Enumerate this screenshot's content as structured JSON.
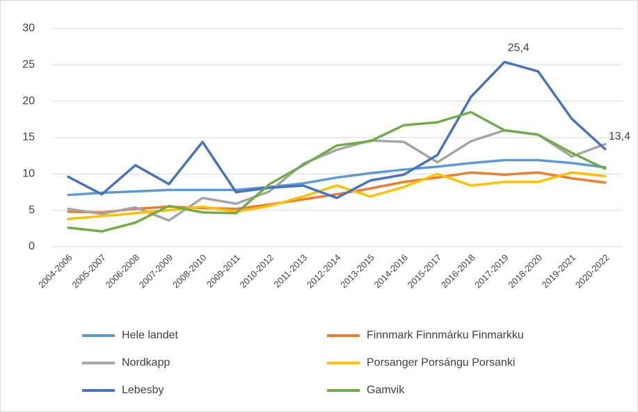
{
  "chart_data": {
    "type": "line",
    "categories": [
      "2004-2006",
      "2005-2007",
      "2006-2008",
      "2007-2009",
      "2008-2010",
      "2009-2011",
      "2010-2012",
      "2011-2013",
      "2012-2014",
      "2013-2015",
      "2014-2016",
      "2015-2017",
      "2016-2018",
      "2017-2019",
      "2018-2020",
      "2019-2021",
      "2020-2022"
    ],
    "series": [
      {
        "name": "Hele landet",
        "color": "#5b9bd5",
        "values": [
          7.1,
          7.4,
          7.6,
          7.8,
          7.8,
          7.8,
          8.2,
          8.7,
          9.5,
          10.1,
          10.6,
          11.0,
          11.5,
          11.9,
          11.9,
          11.5,
          10.9
        ]
      },
      {
        "name": "Finnmark Finnmárku Finmarkku",
        "color": "#ed7d31",
        "values": [
          4.8,
          4.7,
          5.2,
          5.5,
          5.3,
          5.2,
          5.8,
          6.5,
          7.2,
          8.0,
          8.9,
          9.5,
          10.2,
          9.9,
          10.2,
          9.4,
          8.8
        ]
      },
      {
        "name": "Nordkapp",
        "color": "#a5a5a5",
        "values": [
          5.2,
          4.5,
          5.4,
          3.6,
          6.7,
          5.9,
          7.6,
          11.4,
          13.3,
          14.6,
          14.4,
          11.6,
          14.5,
          16.0,
          15.4,
          12.4,
          14.1
        ]
      },
      {
        "name": "Porsanger Porsángu Porsanki",
        "color": "#ffc000",
        "values": [
          3.8,
          4.2,
          4.6,
          5.0,
          5.5,
          4.8,
          5.6,
          6.9,
          8.4,
          6.9,
          8.2,
          10.0,
          8.4,
          8.9,
          8.9,
          10.2,
          9.7
        ]
      },
      {
        "name": "Lebesby",
        "color": "#4472c4",
        "values": [
          9.6,
          7.2,
          11.2,
          8.6,
          14.4,
          7.5,
          8.1,
          8.4,
          6.7,
          9.1,
          9.9,
          12.6,
          20.6,
          25.4,
          24.1,
          17.6,
          13.4
        ],
        "value_labels": [
          null,
          null,
          null,
          null,
          null,
          null,
          null,
          null,
          null,
          null,
          null,
          null,
          null,
          "25,4",
          null,
          null,
          "13,4"
        ]
      },
      {
        "name": "Gamvik",
        "color": "#70ad47",
        "values": [
          2.6,
          2.1,
          3.3,
          5.6,
          4.7,
          4.6,
          8.6,
          11.2,
          13.9,
          14.5,
          16.7,
          17.1,
          18.5,
          16.0,
          15.4,
          12.9,
          10.7
        ]
      }
    ],
    "ylim": [
      0,
      30
    ],
    "yticks": [
      0,
      5,
      10,
      15,
      20,
      25,
      30
    ],
    "grid": true,
    "legend": "bottom"
  }
}
